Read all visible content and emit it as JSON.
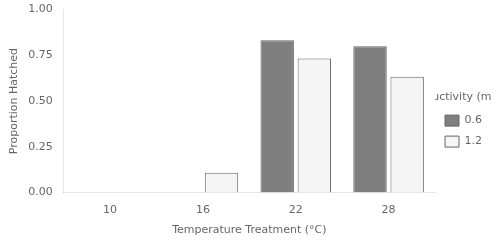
{
  "chart_data": {
    "type": "bar",
    "categories": [
      "10",
      "16",
      "22",
      "28"
    ],
    "series": [
      {
        "name": "0.6",
        "color": "#7f7f7f",
        "values": [
          0.0,
          0.0,
          0.833,
          0.8
        ]
      },
      {
        "name": "1.2",
        "color": "#f5f5f5",
        "values": [
          0.0,
          0.108,
          0.733,
          0.633
        ]
      }
    ],
    "xlabel": "Temperature Treatment (°C)",
    "ylabel": "Proportion Hatched",
    "legend_title": "Conductivity (mS/cm)",
    "legend": "right",
    "ylim": [
      0.0,
      1.0
    ],
    "yticks": [
      {
        "value": 0.0,
        "label": "0.00"
      },
      0.25,
      {
        "value": 0.5,
        "label": "0.50"
      },
      0.75,
      {
        "value": 1.0,
        "label": "1.00"
      }
    ],
    "grid": false
  }
}
